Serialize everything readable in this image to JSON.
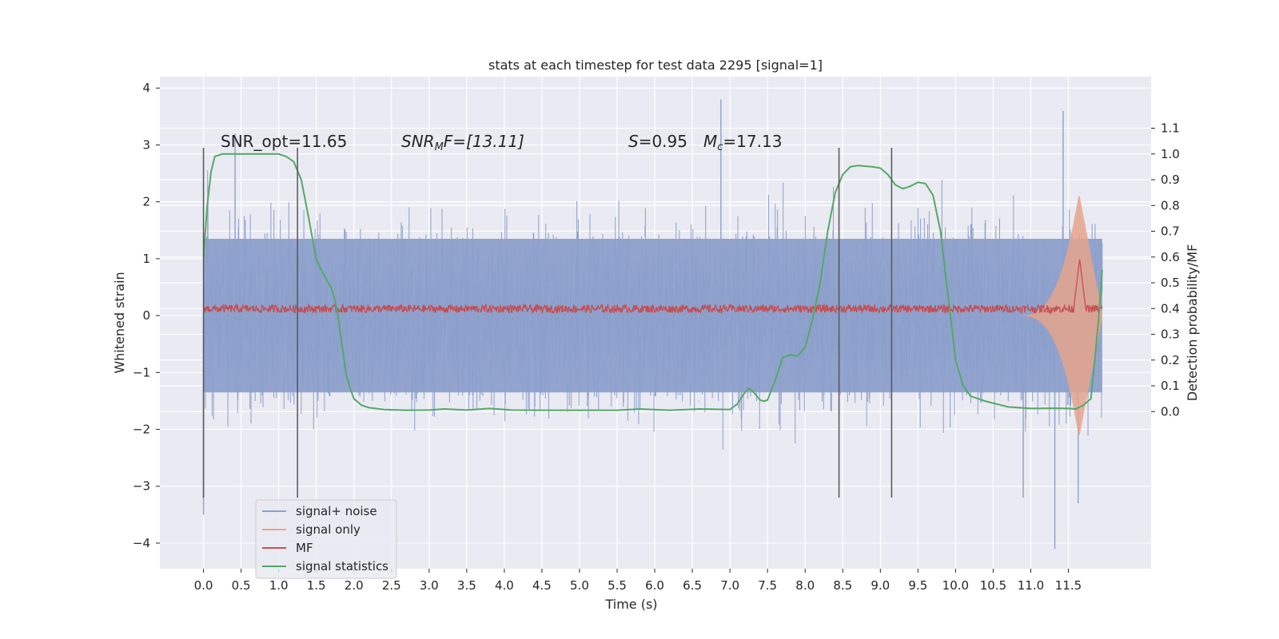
{
  "chart_data": {
    "type": "line",
    "title": "stats at each timestep for test data 2295 [signal=1]",
    "xlabel": "Time (s)",
    "ylabel": "Whitened strain",
    "ylabel_right": "Detection probability/MF",
    "xlim": [
      -0.58,
      12.6
    ],
    "ylim": [
      -4.45,
      4.2
    ],
    "ylim_right": [
      -0.61,
      1.3
    ],
    "x_ticks": [
      0.0,
      0.5,
      1.0,
      1.5,
      2.0,
      2.5,
      3.0,
      3.5,
      4.0,
      4.5,
      5.0,
      5.5,
      6.0,
      6.5,
      7.0,
      7.5,
      8.0,
      8.5,
      9.0,
      9.5,
      10.0,
      10.5,
      11.0,
      11.5
    ],
    "x_tick_labels": [
      "0.0",
      "0.5",
      "1.0",
      "1.5",
      "2.0",
      "2.5",
      "3.0",
      "3.5",
      "4.0",
      "4.5",
      "5.0",
      "5.5",
      "6.0",
      "6.5",
      "7.0",
      "7.5",
      "8.0",
      "8.5",
      "9.0",
      "9.5",
      "10.0",
      "10.5",
      "11.0",
      "11.5"
    ],
    "y_ticks": [
      -4,
      -3,
      -2,
      -1,
      0,
      1,
      2,
      3,
      4
    ],
    "y_tick_labels": [
      "−4",
      "−3",
      "−2",
      "−1",
      "0",
      "1",
      "2",
      "3",
      "4"
    ],
    "y_right_ticks": [
      0.0,
      0.1,
      0.2,
      0.3,
      0.4,
      0.5,
      0.6,
      0.7,
      0.8,
      0.9,
      1.0,
      1.1
    ],
    "y_right_tick_labels": [
      "0.0",
      "0.1",
      "0.2",
      "0.3",
      "0.4",
      "0.5",
      "0.6",
      "0.7",
      "0.8",
      "0.9",
      "1.0",
      "1.1"
    ],
    "grid": true,
    "legend": {
      "placement": "lower-left",
      "entries": [
        {
          "label": "signal+ noise",
          "color": "#8da0cb"
        },
        {
          "label": "signal only",
          "color": "#e5a58d"
        },
        {
          "label": "MF",
          "color": "#c44e52"
        },
        {
          "label": "signal statistics",
          "color": "#55a868"
        }
      ]
    },
    "annotations": {
      "snr_opt": "SNR_opt=11.65",
      "snr_mf_prefix": "SNR",
      "snr_mf_sub": "M",
      "snr_mf_rest": "F=[13.11]",
      "s_label": "S",
      "s_value": "=0.95",
      "mc_label": "M",
      "mc_sub": "c",
      "mc_value": "=17.13"
    },
    "vertical_lines": [
      {
        "x": 0.0,
        "y_range": [
          -3.2,
          2.95
        ]
      },
      {
        "x": 1.25,
        "y_range": [
          -3.2,
          2.95
        ]
      },
      {
        "x": 8.45,
        "y_range": [
          -3.2,
          2.95
        ]
      },
      {
        "x": 9.15,
        "y_range": [
          -3.2,
          2.95
        ]
      }
    ],
    "signal_noise": {
      "x_range": [
        0.0,
        11.95
      ],
      "band": [
        -1.35,
        1.35
      ],
      "approx_extremes": [
        -4.1,
        3.8
      ],
      "color": "#8da0cb"
    },
    "signal_only": {
      "x_range": [
        10.8,
        11.95
      ],
      "peak_time": 11.65,
      "peak_amplitude": 2.1,
      "color": "#e5a58d"
    },
    "mf": {
      "x_range": [
        0.0,
        11.95
      ],
      "baseline": 0.12,
      "noise_amp": 0.07,
      "peak_time": 11.65,
      "peak_value": 1.0,
      "color": "#c44e52"
    },
    "signal_statistics": {
      "axis": "right",
      "color": "#55a868",
      "x": [
        0.0,
        0.05,
        0.1,
        0.15,
        0.25,
        0.5,
        0.8,
        1.0,
        1.1,
        1.2,
        1.3,
        1.4,
        1.5,
        1.6,
        1.7,
        1.75,
        1.8,
        1.85,
        1.9,
        1.95,
        2.0,
        2.1,
        2.2,
        2.4,
        2.7,
        3.0,
        3.2,
        3.5,
        3.8,
        4.1,
        4.5,
        5.0,
        5.5,
        5.8,
        6.2,
        6.6,
        7.0,
        7.1,
        7.2,
        7.25,
        7.3,
        7.4,
        7.45,
        7.5,
        7.6,
        7.7,
        7.8,
        7.9,
        8.0,
        8.1,
        8.2,
        8.3,
        8.4,
        8.5,
        8.6,
        8.7,
        8.9,
        9.0,
        9.1,
        9.2,
        9.3,
        9.4,
        9.5,
        9.6,
        9.7,
        9.8,
        9.9,
        10.0,
        10.1,
        10.2,
        10.4,
        10.7,
        11.0,
        11.3,
        11.5,
        11.6,
        11.7,
        11.8,
        11.9,
        11.95
      ],
      "y": [
        0.6,
        0.8,
        0.93,
        0.99,
        1.0,
        1.0,
        1.0,
        1.0,
        0.99,
        0.97,
        0.9,
        0.75,
        0.59,
        0.53,
        0.48,
        0.43,
        0.35,
        0.24,
        0.14,
        0.09,
        0.05,
        0.025,
        0.015,
        0.008,
        0.005,
        0.006,
        0.01,
        0.006,
        0.012,
        0.006,
        0.005,
        0.005,
        0.005,
        0.01,
        0.005,
        0.01,
        0.008,
        0.03,
        0.075,
        0.09,
        0.08,
        0.045,
        0.04,
        0.045,
        0.12,
        0.21,
        0.22,
        0.215,
        0.25,
        0.36,
        0.5,
        0.7,
        0.85,
        0.92,
        0.95,
        0.955,
        0.95,
        0.945,
        0.92,
        0.88,
        0.865,
        0.875,
        0.89,
        0.885,
        0.84,
        0.7,
        0.45,
        0.2,
        0.1,
        0.06,
        0.04,
        0.018,
        0.012,
        0.013,
        0.012,
        0.01,
        0.025,
        0.05,
        0.35,
        0.55
      ]
    }
  }
}
